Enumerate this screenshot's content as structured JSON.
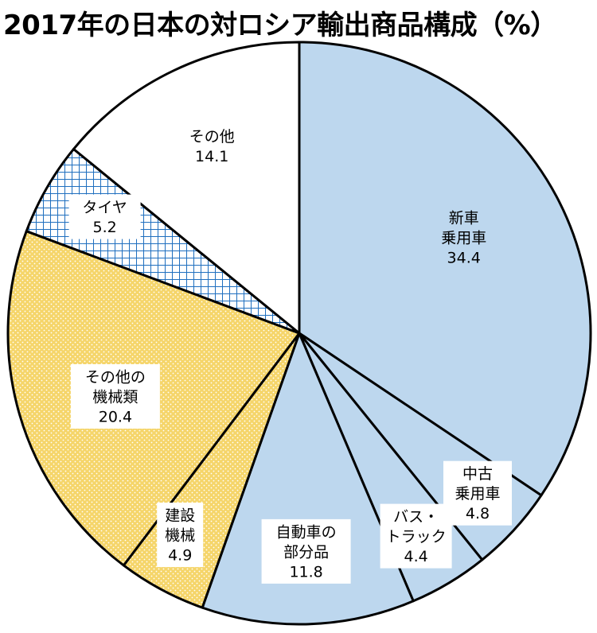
{
  "title": "2017年の日本の対ロシア輸出商品構成（%）",
  "chart_data": {
    "type": "pie",
    "title": "2017年の日本の対ロシア輸出商品構成（%）",
    "start_angle_deg": 0,
    "direction": "clockwise",
    "slices": [
      {
        "label_lines": [
          "新車",
          "乗用車"
        ],
        "value": 34.4,
        "fill": "#bdd7ee",
        "pattern": "none"
      },
      {
        "label_lines": [
          "中古",
          "乗用車"
        ],
        "value": 4.8,
        "fill": "#bdd7ee",
        "pattern": "none"
      },
      {
        "label_lines": [
          "バス・",
          "トラック"
        ],
        "value": 4.4,
        "fill": "#bdd7ee",
        "pattern": "none"
      },
      {
        "label_lines": [
          "自動車の",
          "部分品"
        ],
        "value": 11.8,
        "fill": "#bdd7ee",
        "pattern": "none"
      },
      {
        "label_lines": [
          "建設",
          "機械"
        ],
        "value": 4.9,
        "fill": "#f5d56a",
        "pattern": "dots"
      },
      {
        "label_lines": [
          "その他の",
          "機械類"
        ],
        "value": 20.4,
        "fill": "#f5d56a",
        "pattern": "dots"
      },
      {
        "label_lines": [
          "タイヤ"
        ],
        "value": 5.2,
        "fill": "#ffffff",
        "pattern": "blue-grid"
      },
      {
        "label_lines": [
          "その他"
        ],
        "value": 14.1,
        "fill": "#ffffff",
        "pattern": "none"
      }
    ],
    "colors": {
      "vehicles": "#bdd7ee",
      "machinery": "#f5d56a",
      "tire_grid": "#1f6fbf",
      "other": "#ffffff",
      "outline": "#000000"
    }
  }
}
